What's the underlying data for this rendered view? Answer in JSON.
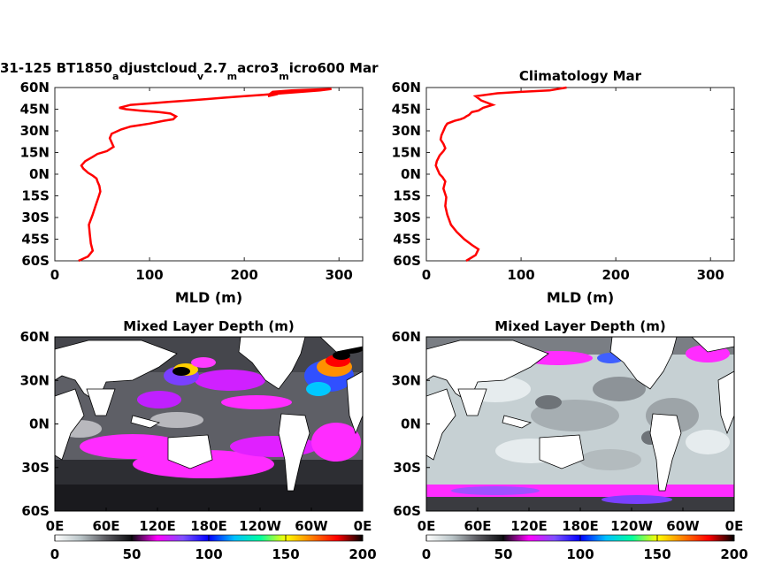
{
  "chart_data": [
    {
      "type": "line",
      "title": "31-125 BT1850_adjustcloud_v2.7_macro3_micro600 Mar",
      "title_parts": {
        "p1": "31-125 BT1850",
        "s1": "a",
        "p2": "djustcloud",
        "s2": "v",
        "p3": "2.7",
        "s3": "m",
        "p4": "acro3",
        "s4": "m",
        "p5": "icro600 Mar"
      },
      "xlabel": "MLD (m)",
      "ylabel": "",
      "xlim": [
        0,
        325
      ],
      "ylim": [
        -60,
        60
      ],
      "xticks": [
        "0",
        "100",
        "200",
        "300"
      ],
      "yticks": [
        "60N",
        "45N",
        "30N",
        "15N",
        "0N",
        "15S",
        "30S",
        "45S",
        "60S"
      ],
      "line_color": "#ff0000",
      "series": [
        {
          "x": [
            25,
            35,
            40,
            38,
            37,
            36,
            40,
            43,
            46,
            48,
            47,
            45,
            44,
            40,
            35,
            30,
            28,
            32,
            40,
            45,
            55,
            62,
            60,
            58,
            60,
            70,
            80,
            90,
            100,
            115,
            125,
            128,
            122,
            110,
            90,
            75,
            68,
            80,
            100,
            120,
            140,
            160,
            180,
            200,
            220,
            240,
            260,
            280,
            292,
            250,
            230,
            228,
            232,
            225
          ],
          "y": [
            -60,
            -57,
            -53,
            -48,
            -42,
            -35,
            -28,
            -22,
            -16,
            -12,
            -8,
            -5,
            -3,
            -1,
            1,
            4,
            6,
            9,
            12,
            14,
            16,
            19,
            22,
            25,
            28,
            31,
            33,
            34,
            35,
            37,
            38,
            40,
            42,
            43,
            44,
            45,
            46,
            48,
            49,
            50,
            51,
            52,
            53,
            54,
            55,
            56,
            57,
            58,
            59,
            58,
            57,
            56,
            55,
            54
          ]
        }
      ]
    },
    {
      "type": "line",
      "title": "Climatology Mar",
      "xlabel": "MLD (m)",
      "ylabel": "",
      "xlim": [
        0,
        325
      ],
      "ylim": [
        -60,
        60
      ],
      "xticks": [
        "0",
        "100",
        "200",
        "300"
      ],
      "yticks": [
        "60N",
        "45N",
        "30N",
        "15N",
        "0N",
        "15S",
        "30S",
        "45S",
        "60S"
      ],
      "line_color": "#ff0000",
      "series": [
        {
          "x": [
            42,
            52,
            55,
            48,
            40,
            32,
            26,
            22,
            20,
            21,
            18,
            20,
            17,
            14,
            12,
            10,
            11,
            14,
            18,
            20,
            18,
            15,
            16,
            18,
            20,
            22,
            30,
            36,
            40,
            42,
            45,
            48,
            55,
            60,
            70,
            58,
            52,
            75,
            100,
            130,
            148
          ],
          "y": [
            -60,
            -56,
            -52,
            -49,
            -45,
            -40,
            -35,
            -28,
            -22,
            -16,
            -10,
            -5,
            -2,
            0,
            3,
            6,
            9,
            13,
            16,
            18,
            21,
            24,
            27,
            30,
            33,
            35,
            37,
            38,
            39,
            40,
            41,
            43,
            44,
            46,
            48,
            51,
            54,
            56,
            57,
            58,
            60
          ]
        }
      ]
    },
    {
      "type": "heatmap",
      "title": "Mixed Layer Depth (m)",
      "xticks": [
        "0E",
        "60E",
        "120E",
        "180E",
        "120W",
        "60W",
        "0E"
      ],
      "yticks": [
        "60N",
        "30N",
        "0N",
        "30S",
        "60S"
      ],
      "colorbar": {
        "ticks": [
          "0",
          "50",
          "100",
          "150",
          "200"
        ],
        "range": [
          0,
          200
        ],
        "stops": [
          "#ffffff",
          "#b9c4c7",
          "#5a5a60",
          "#0d0d10",
          "#ff00ff",
          "#7f50ff",
          "#0000ff",
          "#00c0ff",
          "#00ffa0",
          "#ffff00",
          "#ff8000",
          "#ff0000",
          "#000000"
        ]
      }
    },
    {
      "type": "heatmap",
      "title": "Mixed Layer Depth (m)",
      "xticks": [
        "0E",
        "60E",
        "120E",
        "180E",
        "120W",
        "60W",
        "0E"
      ],
      "yticks": [
        "60N",
        "30N",
        "0N",
        "30S",
        "60S"
      ],
      "colorbar": {
        "ticks": [
          "0",
          "50",
          "100",
          "150",
          "200"
        ],
        "range": [
          0,
          200
        ],
        "stops": [
          "#ffffff",
          "#b9c4c7",
          "#5a5a60",
          "#0d0d10",
          "#ff00ff",
          "#7f50ff",
          "#0000ff",
          "#00c0ff",
          "#00ffa0",
          "#ffff00",
          "#ff8000",
          "#ff0000",
          "#000000"
        ]
      }
    }
  ]
}
